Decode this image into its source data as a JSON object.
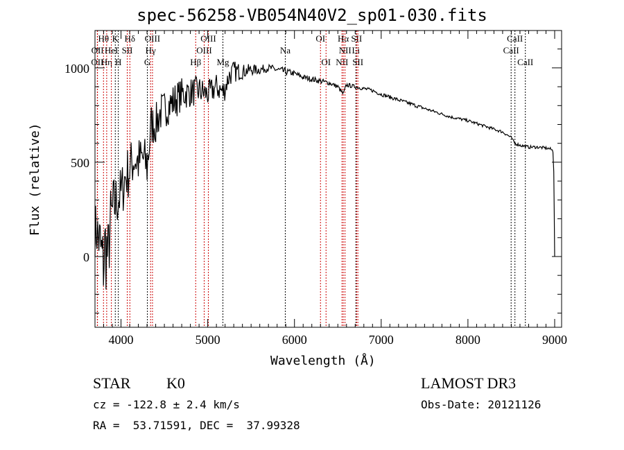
{
  "chart_data": {
    "type": "line",
    "title": "spec-56258-VB054N40V2_sp01-030.fits",
    "xlabel": "Wavelength (Å)",
    "ylabel": "Flux (relative)",
    "xlim": [
      3700,
      9080
    ],
    "ylim": [
      -375,
      1198
    ],
    "xticks": [
      4000,
      5000,
      6000,
      7000,
      8000,
      9000
    ],
    "xtick_labels": [
      "4000",
      "5000",
      "6000",
      "7000",
      "8000",
      "9000"
    ],
    "yticks": [
      0,
      500,
      1000
    ],
    "ytick_labels": [
      "0",
      "500",
      "1000"
    ],
    "grid": false,
    "series": [
      {
        "name": "flux",
        "color": "#000000",
        "x": [
          3700,
          3730,
          3760,
          3790,
          3820,
          3850,
          3880,
          3910,
          3950,
          4000,
          4050,
          4100,
          4150,
          4200,
          4250,
          4300,
          4350,
          4400,
          4450,
          4500,
          4600,
          4700,
          4800,
          4900,
          5000,
          5100,
          5180,
          5250,
          5300,
          5400,
          5500,
          5600,
          5700,
          5800,
          5900,
          6000,
          6100,
          6200,
          6300,
          6400,
          6500,
          6563,
          6600,
          6700,
          6800,
          6900,
          7000,
          7200,
          7400,
          7600,
          7800,
          8000,
          8200,
          8400,
          8500,
          8540,
          8600,
          8700,
          8800,
          8900,
          8950,
          8980,
          8990,
          9000
        ],
        "y": [
          150,
          120,
          60,
          -50,
          50,
          0,
          180,
          250,
          300,
          330,
          420,
          460,
          520,
          500,
          520,
          480,
          700,
          700,
          760,
          780,
          820,
          860,
          870,
          880,
          860,
          900,
          870,
          960,
          980,
          980,
          990,
          990,
          1000,
          990,
          980,
          970,
          950,
          940,
          930,
          920,
          900,
          860,
          910,
          900,
          890,
          880,
          860,
          830,
          800,
          770,
          740,
          720,
          690,
          660,
          630,
          600,
          590,
          580,
          580,
          575,
          570,
          560,
          450,
          0
        ],
        "noise": [
          150,
          150,
          200,
          250,
          250,
          200,
          200,
          180,
          160,
          150,
          150,
          150,
          140,
          140,
          130,
          150,
          120,
          110,
          110,
          100,
          100,
          90,
          80,
          80,
          70,
          70,
          70,
          60,
          60,
          40,
          30,
          25,
          20,
          20,
          20,
          15,
          15,
          15,
          15,
          12,
          12,
          12,
          12,
          10,
          10,
          10,
          10,
          10,
          10,
          8,
          8,
          8,
          8,
          8,
          8,
          8,
          8,
          8,
          8,
          8,
          8,
          8,
          0,
          0
        ]
      }
    ],
    "lines": [
      {
        "label": "OII",
        "wave": 3727,
        "row": 3,
        "color": "#cc0000"
      },
      {
        "label": "Hθ",
        "wave": 3798,
        "row": 1,
        "color": "#cc0000"
      },
      {
        "label": "OII",
        "wave": 3729,
        "row": 2,
        "color": "#cc0000"
      },
      {
        "label": "Hη",
        "wave": 3835,
        "row": 3,
        "color": "#cc0000"
      },
      {
        "label": "HeI",
        "wave": 3889,
        "row": 2,
        "color": "#cc0000"
      },
      {
        "label": "K",
        "wave": 3934,
        "row": 1,
        "color": "#000000"
      },
      {
        "label": "H",
        "wave": 3969,
        "row": 3,
        "color": "#000000"
      },
      {
        "label": "SII",
        "wave": 4072,
        "row": 2,
        "color": "#cc0000"
      },
      {
        "label": "Hδ",
        "wave": 4102,
        "row": 1,
        "color": "#cc0000"
      },
      {
        "label": "G",
        "wave": 4304,
        "row": 3,
        "color": "#000000"
      },
      {
        "label": "Hγ",
        "wave": 4341,
        "row": 2,
        "color": "#cc0000"
      },
      {
        "label": "OIII",
        "wave": 4363,
        "row": 1,
        "color": "#cc0000"
      },
      {
        "label": "Hβ",
        "wave": 4861,
        "row": 3,
        "color": "#cc0000"
      },
      {
        "label": "OIII",
        "wave": 4959,
        "row": 2,
        "color": "#cc0000"
      },
      {
        "label": "OIII",
        "wave": 5007,
        "row": 1,
        "color": "#cc0000"
      },
      {
        "label": "Mg",
        "wave": 5175,
        "row": 3,
        "color": "#000000"
      },
      {
        "label": "Na",
        "wave": 5894,
        "row": 2,
        "color": "#000000"
      },
      {
        "label": "OI",
        "wave": 6300,
        "row": 1,
        "color": "#cc0000"
      },
      {
        "label": "OI",
        "wave": 6364,
        "row": 3,
        "color": "#cc0000"
      },
      {
        "label": "NII",
        "wave": 6548,
        "row": 3,
        "color": "#cc0000"
      },
      {
        "label": "Hα",
        "wave": 6563,
        "row": 1,
        "color": "#cc0000"
      },
      {
        "label": "NII",
        "wave": 6583,
        "row": 2,
        "color": "#cc0000"
      },
      {
        "label": "Li",
        "wave": 6708,
        "row": 2,
        "color": "#000000"
      },
      {
        "label": "SII",
        "wave": 6716,
        "row": 1,
        "color": "#cc0000"
      },
      {
        "label": "SII",
        "wave": 6731,
        "row": 3,
        "color": "#cc0000"
      },
      {
        "label": "CaII",
        "wave": 8498,
        "row": 2,
        "color": "#000000"
      },
      {
        "label": "CaII",
        "wave": 8542,
        "row": 1,
        "color": "#000000"
      },
      {
        "label": "CaII",
        "wave": 8662,
        "row": 3,
        "color": "#000000"
      }
    ]
  },
  "info": {
    "class": "STAR",
    "subclass": "K0",
    "survey": "LAMOST DR3",
    "cz": "cz = -122.8 ± 2.4 km/s",
    "obs_date": "Obs-Date: 20121126",
    "radec": "RA =  53.71591, DEC =  37.99328"
  }
}
